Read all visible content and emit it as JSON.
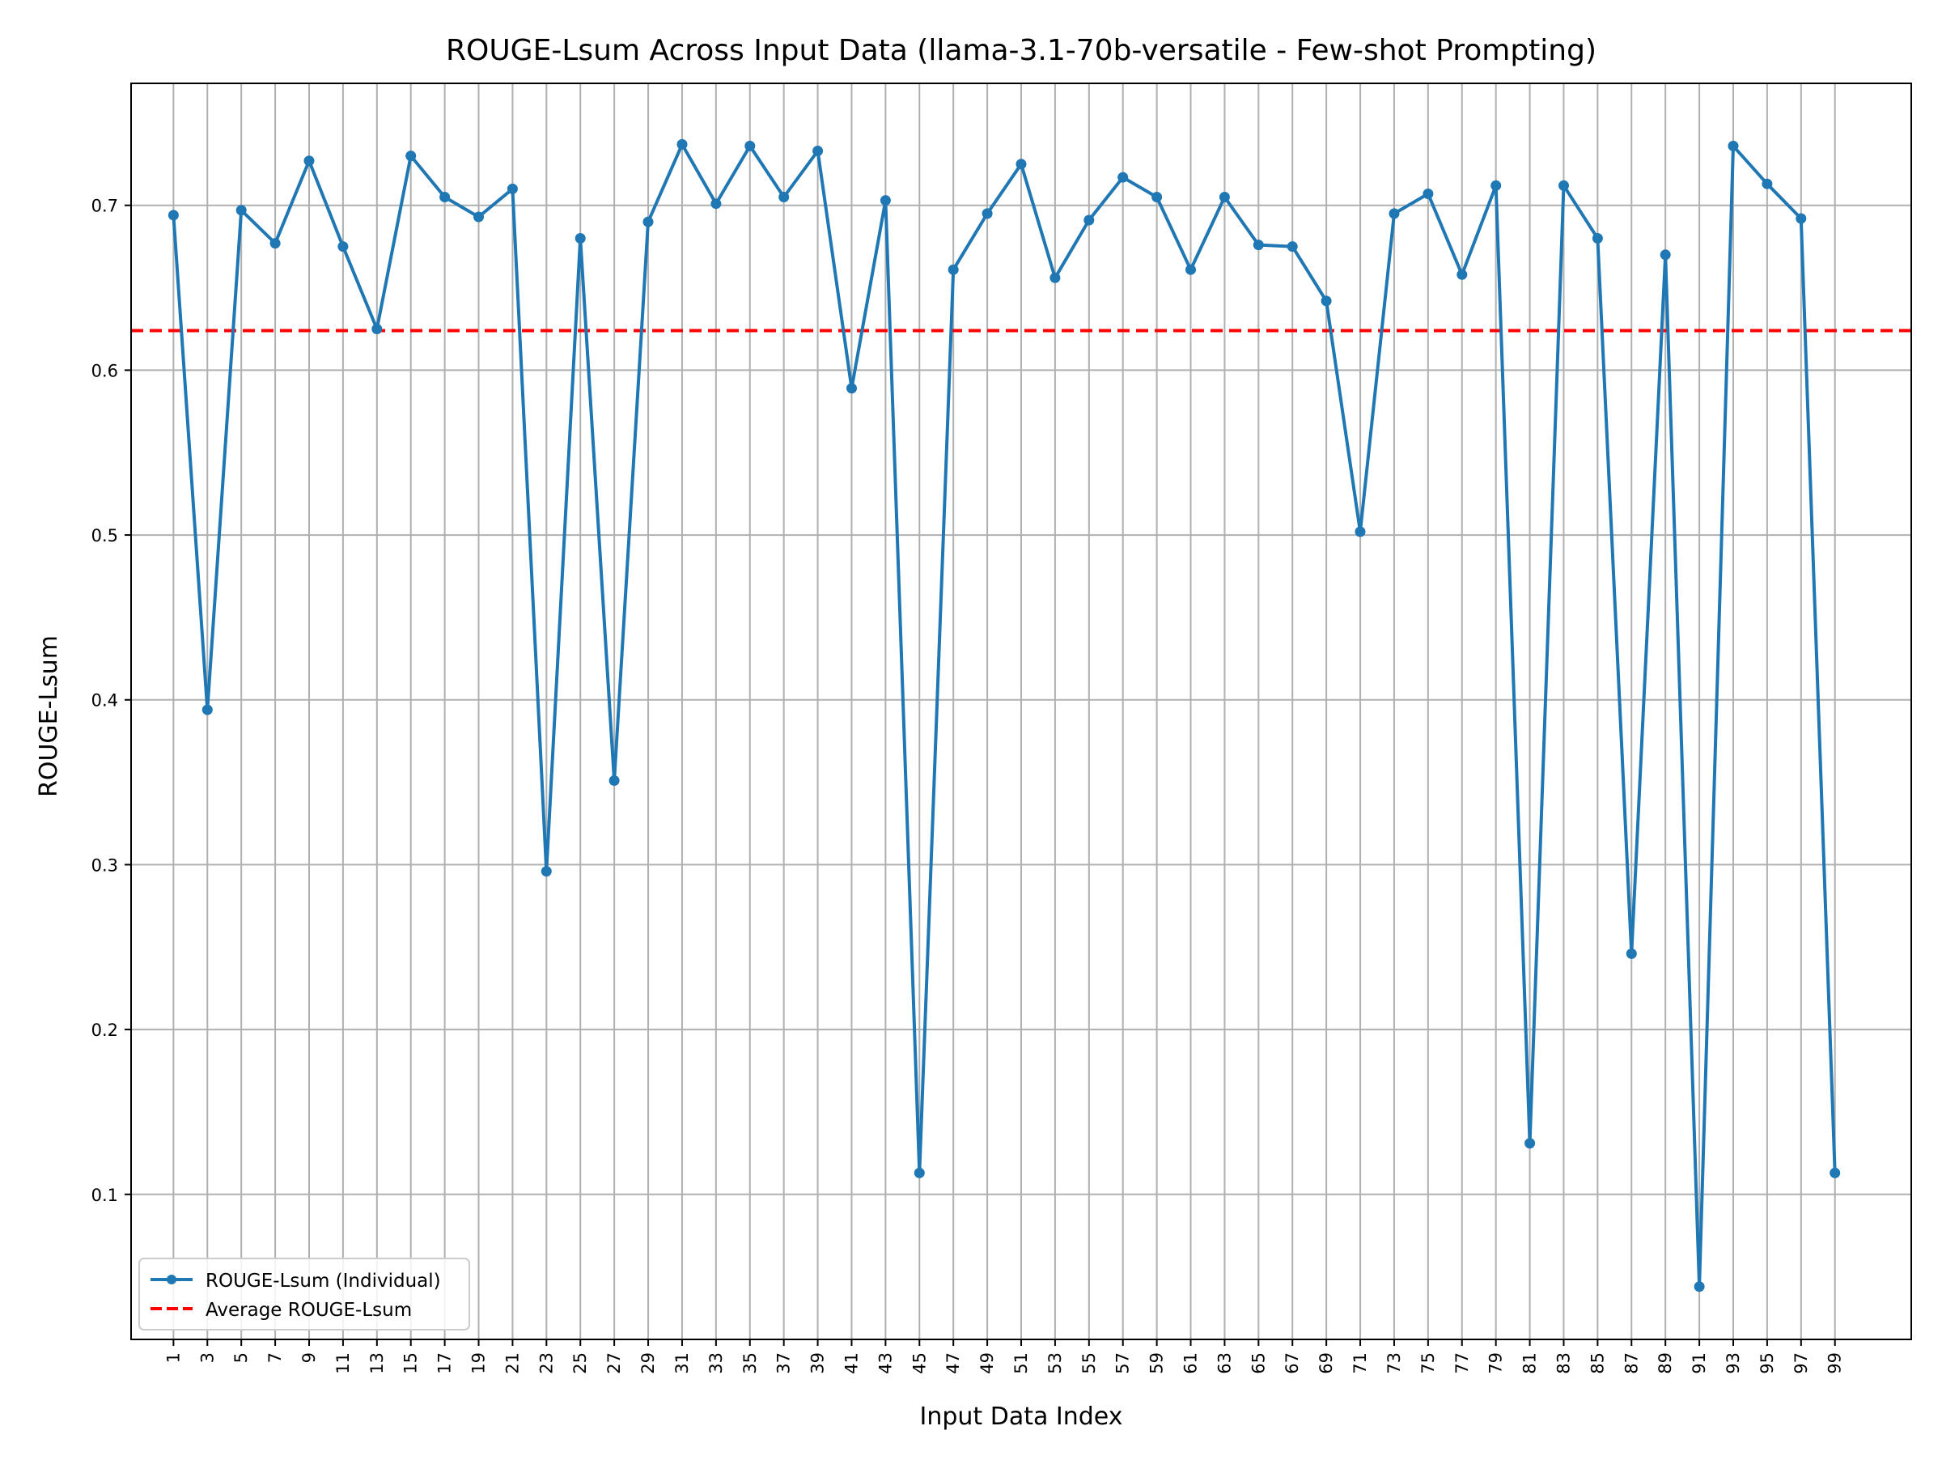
{
  "chart_data": {
    "type": "line",
    "title": "ROUGE-Lsum Across Input Data (llama-3.1-70b-versatile - Few-shot Prompting)",
    "xlabel": "Input Data Index",
    "ylabel": "ROUGE-Lsum",
    "xlim": [
      -1.5,
      103.5
    ],
    "ylim": [
      0.012,
      0.774
    ],
    "x_ticks": [
      1,
      3,
      5,
      7,
      9,
      11,
      13,
      15,
      17,
      19,
      21,
      23,
      25,
      27,
      29,
      31,
      33,
      35,
      37,
      39,
      41,
      43,
      45,
      47,
      49,
      51,
      53,
      55,
      57,
      59,
      61,
      63,
      65,
      67,
      69,
      71,
      73,
      75,
      77,
      79,
      81,
      83,
      85,
      87,
      89,
      91,
      93,
      95,
      97,
      99
    ],
    "y_ticks": [
      0.1,
      0.2,
      0.3,
      0.4,
      0.5,
      0.6,
      0.7
    ],
    "grid": true,
    "legend_position": "bottom-left",
    "series": [
      {
        "name": "ROUGE-Lsum (Individual)",
        "color": "#1f77b4",
        "style": "solid-with-markers",
        "x": [
          1,
          3,
          5,
          7,
          9,
          11,
          13,
          15,
          17,
          19,
          21,
          23,
          25,
          27,
          29,
          31,
          33,
          35,
          37,
          39,
          41,
          43,
          45,
          47,
          49,
          51,
          53,
          55,
          57,
          59,
          61,
          63,
          65,
          67,
          69,
          71,
          73,
          75,
          77,
          79,
          81,
          83,
          85,
          87,
          89,
          91,
          93,
          95,
          97,
          99
        ],
        "values": [
          0.694,
          0.394,
          0.697,
          0.677,
          0.727,
          0.675,
          0.625,
          0.73,
          0.705,
          0.693,
          0.71,
          0.296,
          0.68,
          0.351,
          0.69,
          0.737,
          0.701,
          0.736,
          0.705,
          0.733,
          0.589,
          0.703,
          0.113,
          0.661,
          0.695,
          0.725,
          0.656,
          0.691,
          0.717,
          0.705,
          0.661,
          0.705,
          0.676,
          0.675,
          0.642,
          0.502,
          0.695,
          0.707,
          0.658,
          0.712,
          0.131,
          0.712,
          0.68,
          0.246,
          0.67,
          0.044,
          0.736,
          0.713,
          0.692,
          0.113
        ]
      },
      {
        "name": "Average ROUGE-Lsum",
        "color": "#ff0000",
        "style": "dashed",
        "value": 0.624
      }
    ]
  }
}
